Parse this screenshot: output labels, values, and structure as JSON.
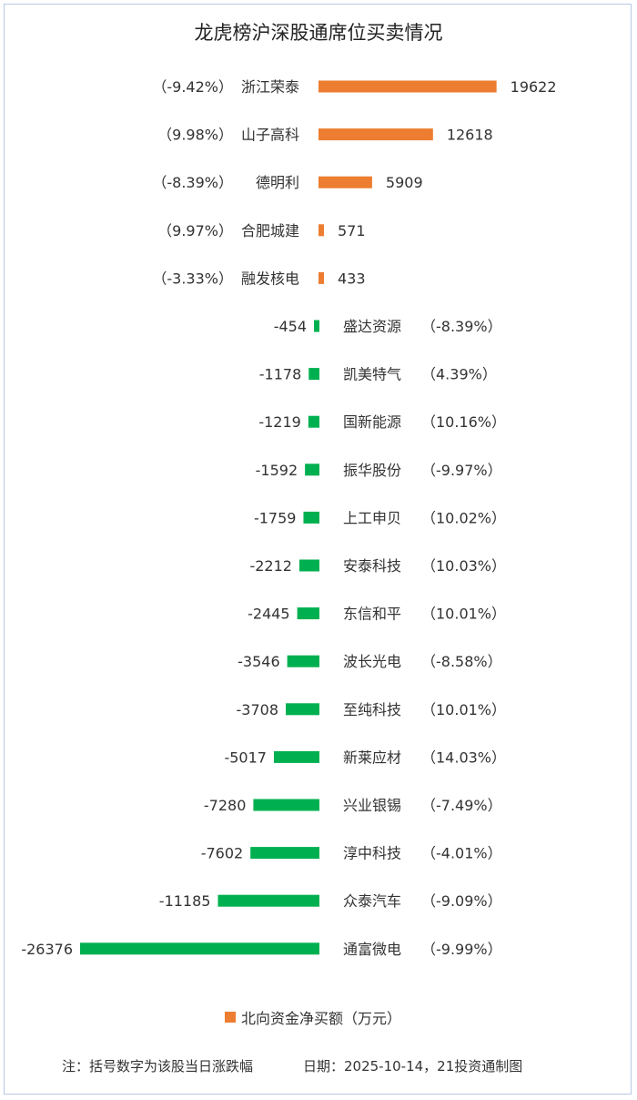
{
  "chart_data": {
    "type": "bar",
    "orientation": "horizontal",
    "title": "龙虎榜沪深股通席位买卖情况",
    "legend": {
      "label": "北向资金净买额（万元）",
      "color": "#ed7d31",
      "position": "bottom"
    },
    "positive_color": "#ed7d31",
    "negative_color": "#00b050",
    "grid": false,
    "categories": [
      "浙江荣泰",
      "山子高科",
      "德明利",
      "合肥城建",
      "融发核电",
      "盛达资源",
      "凯美特气",
      "国新能源",
      "振华股份",
      "上工申贝",
      "安泰科技",
      "东信和平",
      "波长光电",
      "至纯科技",
      "新莱应材",
      "兴业银锡",
      "淳中科技",
      "众泰汽车",
      "通富微电"
    ],
    "values": [
      19622,
      12618,
      5909,
      571,
      433,
      -454,
      -1178,
      -1219,
      -1592,
      -1759,
      -2212,
      -2445,
      -3546,
      -3708,
      -5017,
      -7280,
      -7602,
      -11185,
      -26376
    ],
    "value_labels": [
      "19622",
      "12618",
      "5909",
      "571",
      "433",
      "-454",
      "-1178",
      "-1219",
      "-1592",
      "-1759",
      "-2212",
      "-2445",
      "-3546",
      "-3708",
      "-5017",
      "-7280",
      "-7602",
      "-11185",
      "-26376"
    ],
    "pct_labels": [
      "（-9.42%）",
      "（9.98%）",
      "（-8.39%）",
      "（9.97%）",
      "（-3.33%）",
      "（-8.39%）",
      "（4.39%）",
      "（10.16%）",
      "（-9.97%）",
      "（10.02%）",
      "（10.03%）",
      "（10.01%）",
      "（-8.58%）",
      "（10.01%）",
      "（14.03%）",
      "（-7.49%）",
      "（-4.01%）",
      "（-9.09%）",
      "（-9.99%）"
    ]
  },
  "footer": {
    "note": "注：括号数字为该股当日涨跌幅",
    "date": "日期：2025-10-14，21投资通制图"
  }
}
